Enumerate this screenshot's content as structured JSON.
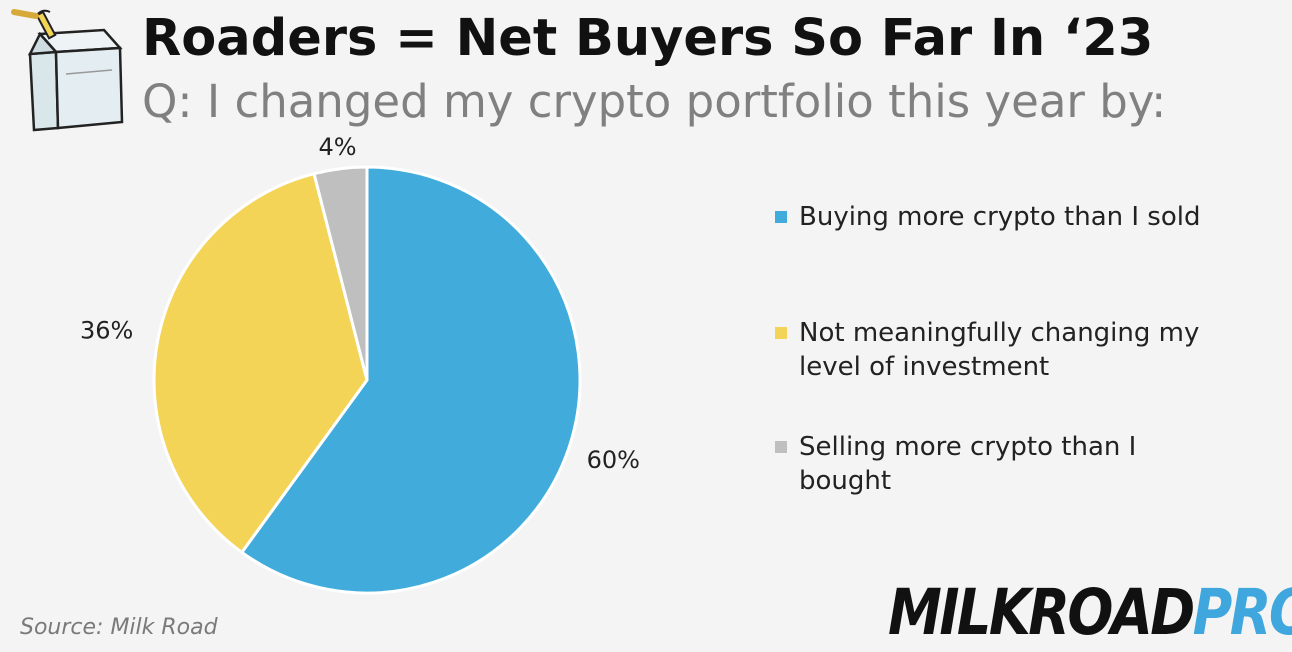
{
  "header": {
    "title": "Roaders = Net Buyers So Far In ‘23",
    "subtitle": "Q: I changed my crypto portfolio this year by:"
  },
  "footer": {
    "source": "Source: Milk Road",
    "brand_part1": "MILKROAD",
    "brand_part2": "PRO",
    "brand_colors": [
      "#111111",
      "#3fa7de"
    ]
  },
  "icons": {
    "logo": "milk-carton-icon"
  },
  "chart_data": {
    "type": "pie",
    "title": "Roaders = Net Buyers So Far In ‘23",
    "subtitle": "Q: I changed my crypto portfolio this year by:",
    "legend_position": "right",
    "slices": [
      {
        "label": "Buying more crypto than I sold",
        "value": 60,
        "display": "60%",
        "color": "#41acdb"
      },
      {
        "label": "Not meaningfully changing my level of investment",
        "value": 36,
        "display": "36%",
        "color": "#f3d456"
      },
      {
        "label": "Selling more crypto than I bought",
        "value": 4,
        "display": "4%",
        "color": "#bfbfbf"
      }
    ]
  }
}
